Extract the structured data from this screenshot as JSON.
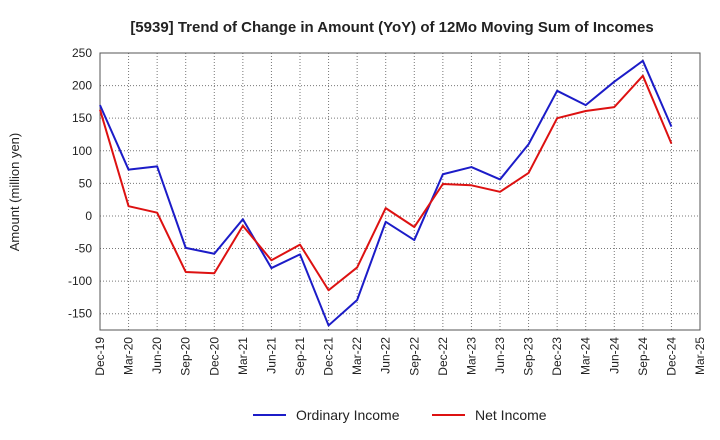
{
  "chart_data": {
    "type": "line",
    "title": "[5939]  Trend of Change in Amount (YoY) of 12Mo Moving Sum of Incomes",
    "ylabel": "Amount (million yen)",
    "xlabel": "",
    "ylim": [
      -175,
      250
    ],
    "yticks": [
      -150,
      -100,
      -50,
      0,
      50,
      100,
      150,
      200,
      250
    ],
    "categories": [
      "Dec-19",
      "Mar-20",
      "Jun-20",
      "Sep-20",
      "Dec-20",
      "Mar-21",
      "Jun-21",
      "Sep-21",
      "Dec-21",
      "Mar-22",
      "Jun-22",
      "Sep-22",
      "Dec-22",
      "Mar-23",
      "Jun-23",
      "Sep-23",
      "Dec-23",
      "Mar-24",
      "Jun-24",
      "Sep-24",
      "Dec-24",
      "Mar-25"
    ],
    "grid": true,
    "legend_position": "bottom",
    "series": [
      {
        "name": "Ordinary Income",
        "color": "#1c1cc8",
        "values": [
          170,
          71,
          76,
          -49,
          -58,
          -5,
          -80,
          -59,
          -168,
          -129,
          -9,
          -37,
          64,
          75,
          56,
          110,
          192,
          170,
          206,
          238,
          137,
          null
        ]
      },
      {
        "name": "Net Income",
        "color": "#dd1111",
        "values": [
          163,
          15,
          5,
          -86,
          -88,
          -15,
          -68,
          -44,
          -114,
          -79,
          12,
          -17,
          49,
          47,
          37,
          66,
          150,
          161,
          167,
          215,
          111,
          null
        ]
      }
    ]
  }
}
